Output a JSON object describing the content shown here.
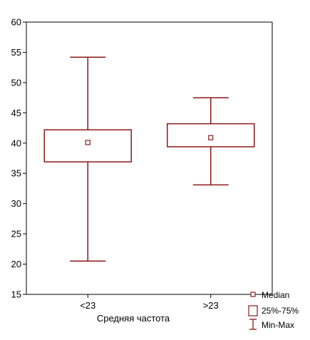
{
  "chart_data": {
    "type": "box",
    "title": "",
    "xlabel": "Средняя частота",
    "ylabel": "",
    "ylim": [
      15,
      60
    ],
    "yticks": [
      15,
      20,
      25,
      30,
      35,
      40,
      45,
      50,
      55,
      60
    ],
    "categories": [
      "<23",
      ">23"
    ],
    "boxes": [
      {
        "category": "<23",
        "min": 20.5,
        "q1": 36.9,
        "median": 40.1,
        "q3": 42.2,
        "max": 54.2
      },
      {
        "category": ">23",
        "min": 33.1,
        "q1": 39.4,
        "median": 40.9,
        "q3": 43.2,
        "max": 47.5
      }
    ],
    "legend": {
      "position": "bottom-right",
      "items": [
        "Median",
        "25%-75%",
        "Min-Max"
      ]
    },
    "color": "#8b1a1a",
    "grid": false
  }
}
